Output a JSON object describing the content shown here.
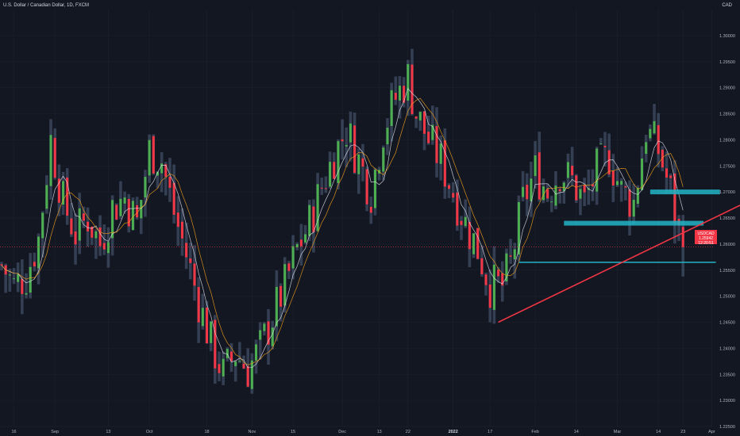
{
  "header": {
    "title": "U.S. Dollar / Canadian Dollar, 1D, FXCM",
    "currency": "CAD"
  },
  "price_badge": {
    "symbol": "USDCAD",
    "price": "1.25942",
    "countdown": "12:20:51"
  },
  "colors": {
    "background": "#131722",
    "up_candle": "#26a69a",
    "up_candle_green": "#4caf50",
    "down_candle": "#f23645",
    "ma_fast": "#e0e3eb",
    "ma_slow": "#f7a21b",
    "trendline": "#f23645",
    "zone": "#22b5c7",
    "grid": "#1e222d"
  },
  "chart_data": {
    "type": "candlestick",
    "title": "U.S. Dollar / Canadian Dollar, 1D, FXCM",
    "y_axis": {
      "min": 1.225,
      "max": 1.305,
      "ticks": [
        "1.30000",
        "1.29500",
        "1.29000",
        "1.28500",
        "1.28000",
        "1.27500",
        "1.27000",
        "1.26500",
        "1.26000",
        "1.25500",
        "1.25000",
        "1.24500",
        "1.24000",
        "1.23500",
        "1.23000",
        "1.22500"
      ],
      "tick_values": [
        1.3,
        1.295,
        1.29,
        1.285,
        1.28,
        1.275,
        1.27,
        1.265,
        1.26,
        1.255,
        1.25,
        1.245,
        1.24,
        1.235,
        1.23,
        1.225
      ]
    },
    "x_axis": {
      "labels": [
        {
          "text": "16",
          "bold": false
        },
        {
          "text": "Sep",
          "bold": false
        },
        {
          "text": "13",
          "bold": false
        },
        {
          "text": "Oct",
          "bold": false
        },
        {
          "text": "18",
          "bold": false
        },
        {
          "text": "Nov",
          "bold": false
        },
        {
          "text": "15",
          "bold": false
        },
        {
          "text": "Dec",
          "bold": false
        },
        {
          "text": "13",
          "bold": false
        },
        {
          "text": "22",
          "bold": false
        },
        {
          "text": "2022",
          "bold": true
        },
        {
          "text": "17",
          "bold": false
        },
        {
          "text": "Feb",
          "bold": false
        },
        {
          "text": "14",
          "bold": false
        },
        {
          "text": "Mar",
          "bold": false
        },
        {
          "text": "14",
          "bold": false
        },
        {
          "text": "23",
          "bold": false
        },
        {
          "text": "Apr",
          "bold": false
        }
      ],
      "label_bar_index": [
        3,
        13,
        26,
        36,
        50,
        61,
        71,
        83,
        92,
        99,
        110,
        119,
        130,
        140,
        150,
        160,
        166,
        173
      ]
    },
    "close_path": [
      [
        0,
        1.256
      ],
      [
        3,
        1.252
      ],
      [
        6,
        1.254
      ],
      [
        9,
        1.261
      ],
      [
        12,
        1.28
      ],
      [
        15,
        1.268
      ],
      [
        18,
        1.262
      ],
      [
        21,
        1.265
      ],
      [
        24,
        1.26
      ],
      [
        27,
        1.267
      ],
      [
        30,
        1.269
      ],
      [
        33,
        1.264
      ],
      [
        36,
        1.278
      ],
      [
        39,
        1.276
      ],
      [
        42,
        1.266
      ],
      [
        45,
        1.258
      ],
      [
        48,
        1.249
      ],
      [
        51,
        1.241
      ],
      [
        54,
        1.235
      ],
      [
        57,
        1.239
      ],
      [
        60,
        1.236
      ],
      [
        63,
        1.24
      ],
      [
        66,
        1.246
      ],
      [
        69,
        1.252
      ],
      [
        72,
        1.259
      ],
      [
        75,
        1.264
      ],
      [
        78,
        1.271
      ],
      [
        81,
        1.277
      ],
      [
        84,
        1.282
      ],
      [
        87,
        1.276
      ],
      [
        90,
        1.27
      ],
      [
        93,
        1.282
      ],
      [
        96,
        1.288
      ],
      [
        99,
        1.292
      ],
      [
        101,
        1.285
      ],
      [
        104,
        1.28
      ],
      [
        107,
        1.276
      ],
      [
        110,
        1.27
      ],
      [
        113,
        1.264
      ],
      [
        116,
        1.259
      ],
      [
        119,
        1.252
      ],
      [
        122,
        1.252
      ],
      [
        124,
        1.256
      ],
      [
        127,
        1.268
      ],
      [
        130,
        1.274
      ],
      [
        133,
        1.27
      ],
      [
        136,
        1.274
      ],
      [
        139,
        1.272
      ],
      [
        142,
        1.268
      ],
      [
        145,
        1.274
      ],
      [
        148,
        1.277
      ],
      [
        151,
        1.27
      ],
      [
        154,
        1.268
      ],
      [
        157,
        1.282
      ],
      [
        160,
        1.278
      ],
      [
        163,
        1.27
      ],
      [
        165,
        1.262
      ],
      [
        166,
        1.2594
      ]
    ],
    "ma_fast_label": "",
    "ma_slow_label": "",
    "trendline": {
      "from": {
        "bar": 121,
        "price": 1.245
      },
      "to": {
        "bar": 184,
        "price": 1.269
      }
    },
    "zones": [
      {
        "from_bar": 158,
        "to_bar": 175,
        "price": 1.27
      },
      {
        "from_bar": 137,
        "to_bar": 171,
        "price": 1.264
      }
    ],
    "support_line": {
      "from_bar": 126,
      "to_bar": 174,
      "price": 1.2565
    },
    "current_price": 1.25942
  }
}
